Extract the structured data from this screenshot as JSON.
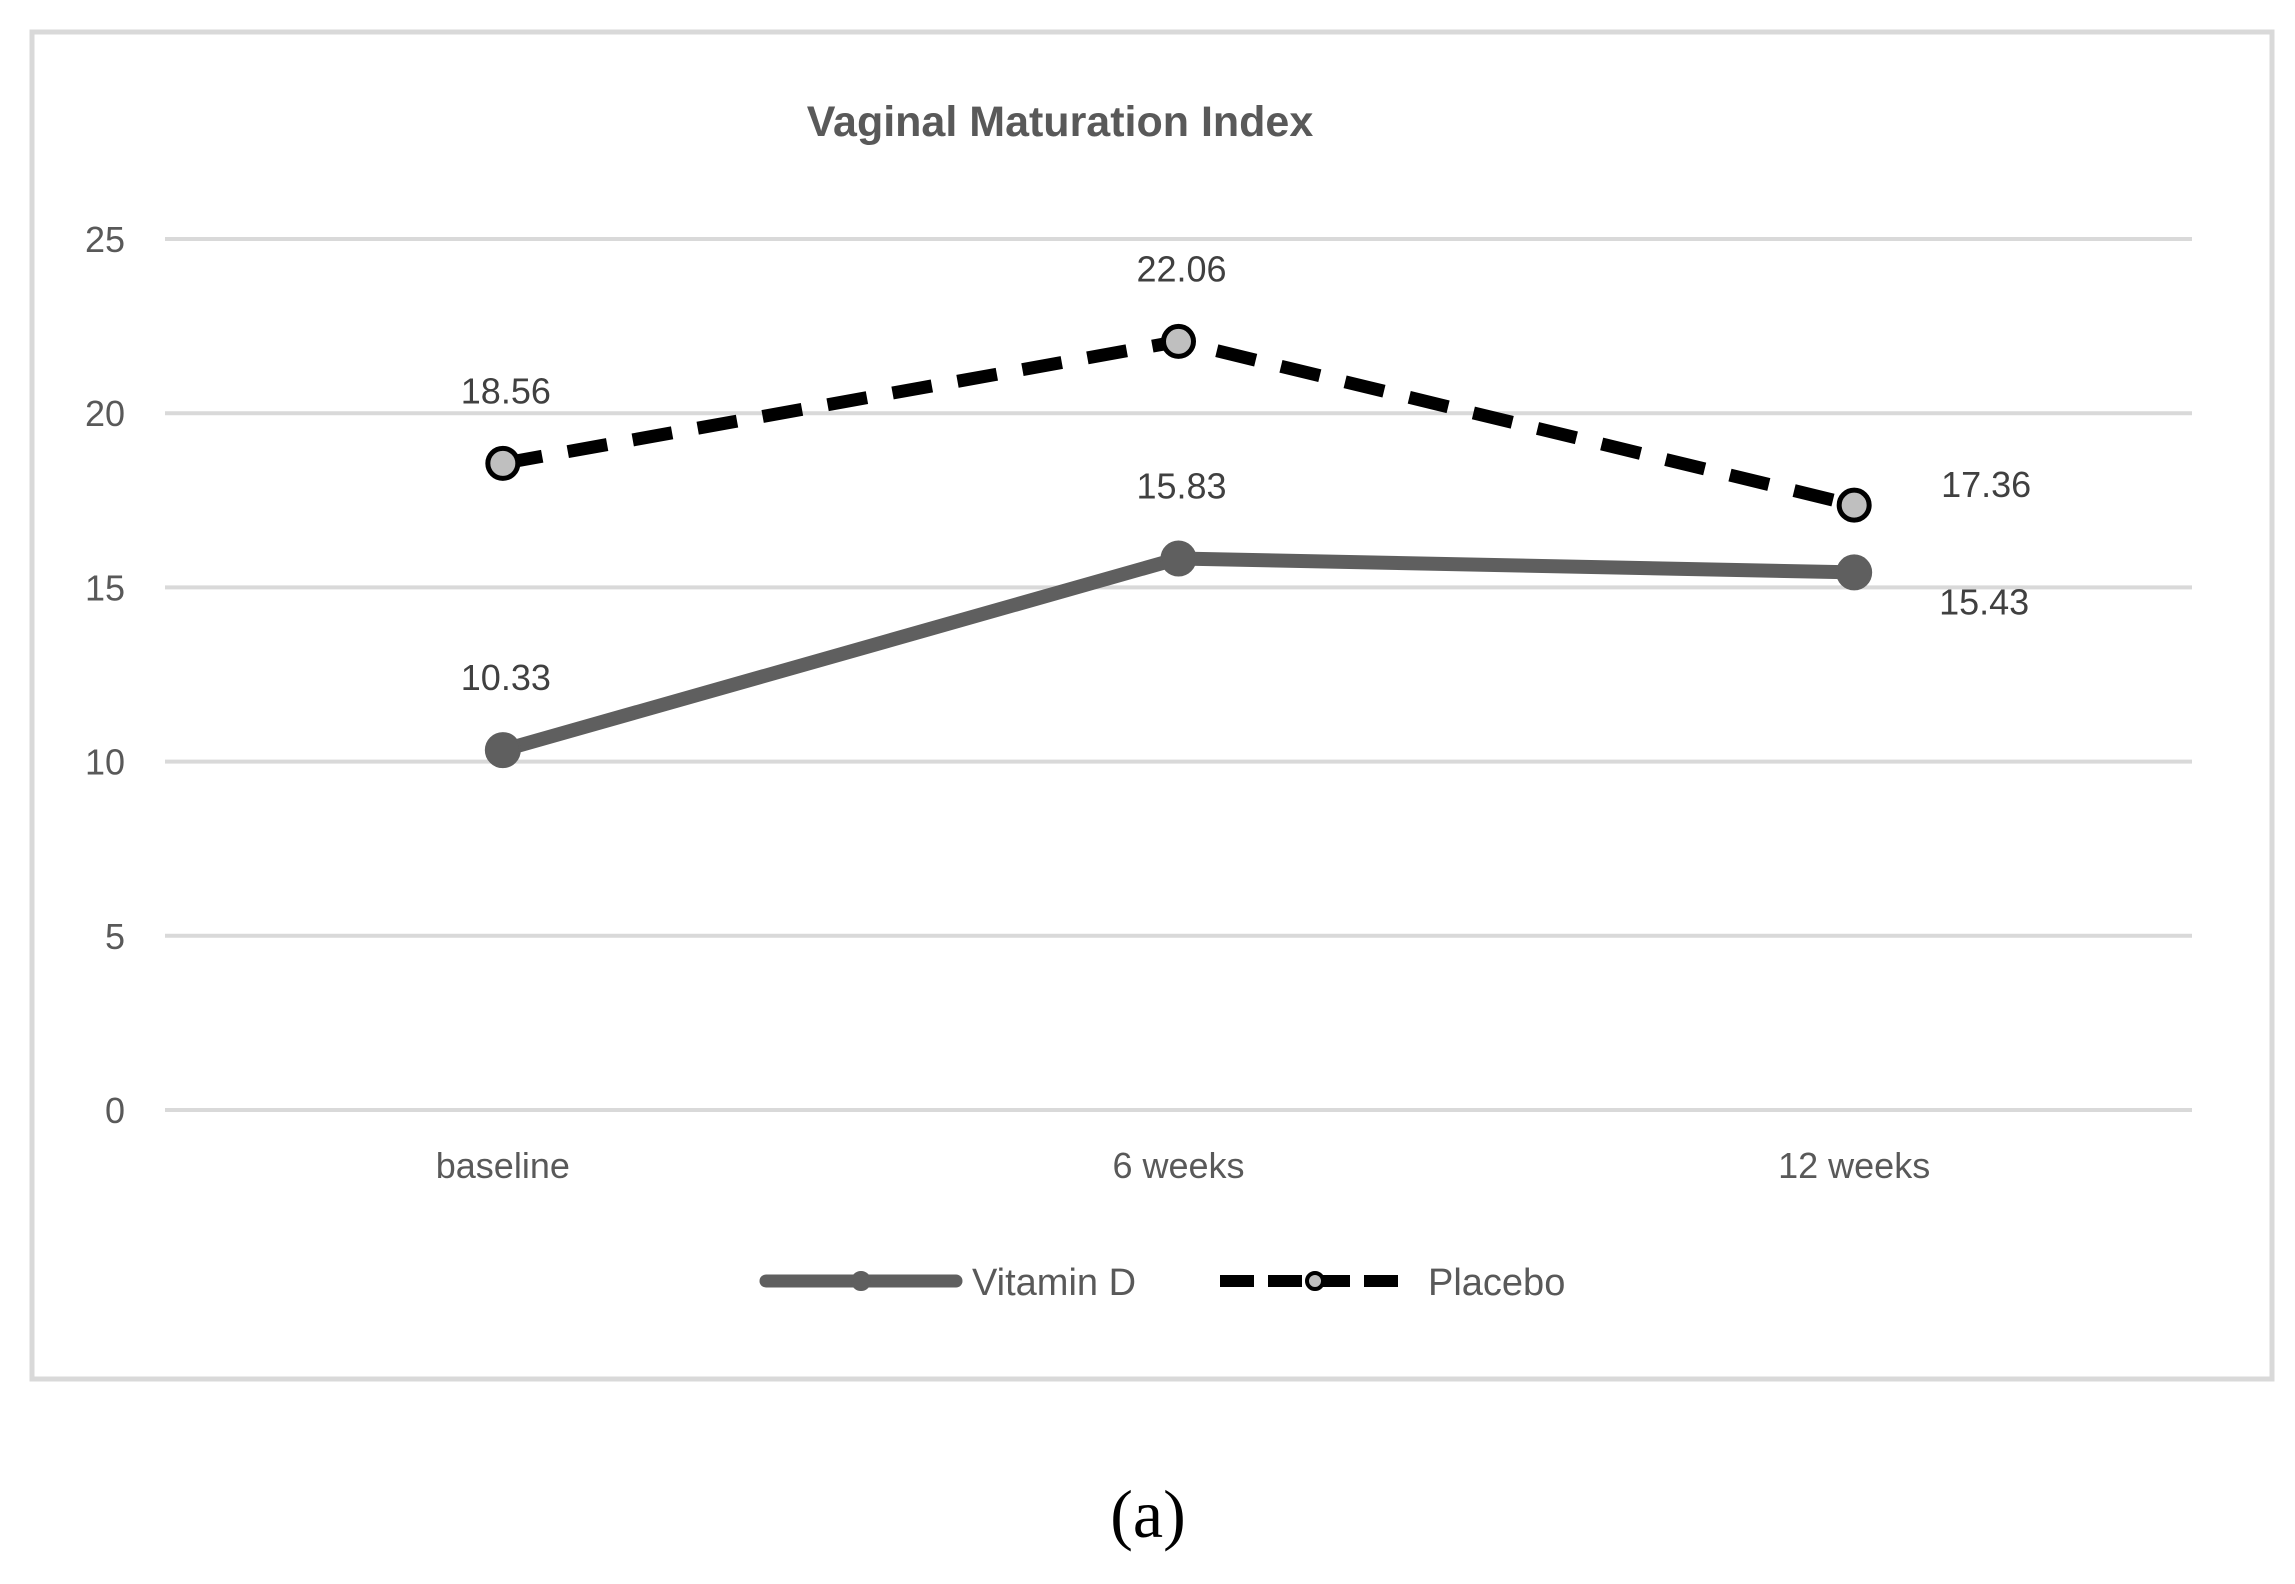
{
  "chart_data": {
    "type": "line",
    "title": "Vaginal Maturation Index",
    "categories": [
      "baseline",
      "6 weeks",
      "12 weeks"
    ],
    "ylim": [
      0,
      25
    ],
    "yticks": [
      0,
      5,
      10,
      15,
      20,
      25
    ],
    "grid": true,
    "legend_position": "bottom",
    "series": [
      {
        "name": "Vitamin D",
        "values": [
          10.33,
          15.83,
          15.43
        ],
        "labels": [
          "10.33",
          "15.83",
          "15.43"
        ],
        "line_style": "solid",
        "color": "#5f5f5f",
        "marker_fill": "#5f5f5f"
      },
      {
        "name": "Placebo",
        "values": [
          18.56,
          22.06,
          17.36
        ],
        "labels": [
          "18.56",
          "22.06",
          "17.36"
        ],
        "line_style": "dashed",
        "color": "#000000",
        "marker_fill": "#bfbfbf"
      }
    ]
  },
  "caption": "(a)"
}
